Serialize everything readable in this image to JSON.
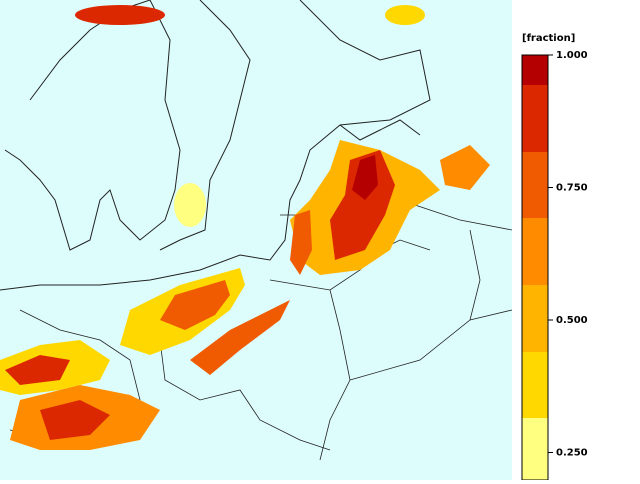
{
  "legend": {
    "title": "[fraction]",
    "ticks": [
      {
        "value": 1,
        "label": "1.000"
      },
      {
        "value": 0.75,
        "label": "0.750"
      },
      {
        "value": 0.5,
        "label": "0.500"
      },
      {
        "value": 0.25,
        "label": "0.250"
      }
    ]
  }
}
